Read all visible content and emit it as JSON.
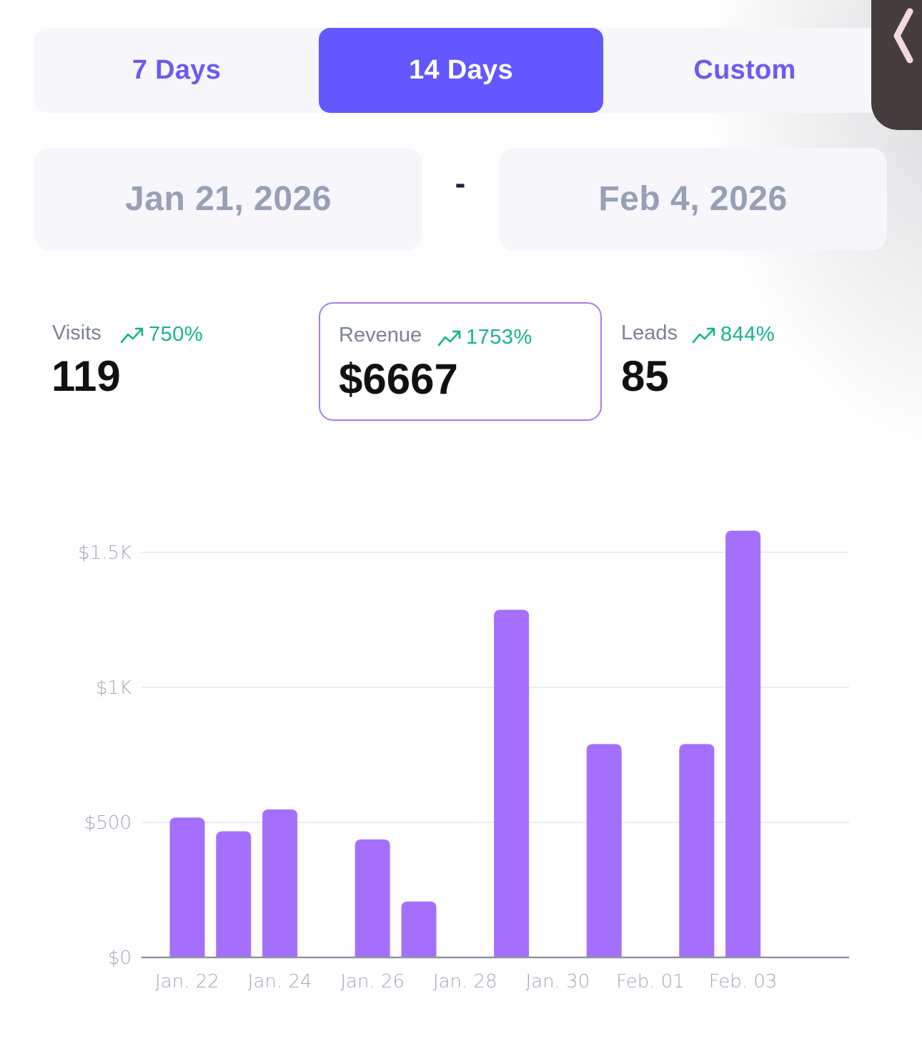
{
  "range_selector": {
    "options": [
      {
        "label": "7 Days",
        "active": false
      },
      {
        "label": "14 Days",
        "active": true
      },
      {
        "label": "Custom",
        "active": false
      }
    ]
  },
  "side_handle": {
    "icon": "chevron-left-icon"
  },
  "date_range": {
    "start": "Jan 21, 2026",
    "separator": "-",
    "end": "Feb 4, 2026"
  },
  "metrics": [
    {
      "label": "Visits",
      "trend": "750%",
      "value": "119",
      "selected": false
    },
    {
      "label": "Revenue",
      "trend": "1753%",
      "value": "$6667",
      "selected": true
    },
    {
      "label": "Leads",
      "trend": "844%",
      "value": "85",
      "selected": false
    }
  ],
  "colors": {
    "accent": "#6357ff",
    "bar": "#a56ffe",
    "trend_up": "#14b58d",
    "selected_border": "#a77cf0"
  },
  "chart_data": {
    "type": "bar",
    "title": "",
    "xlabel": "",
    "ylabel": "",
    "categories": [
      "Jan. 22",
      "Jan. 23",
      "Jan. 24",
      "Jan. 25",
      "Jan. 26",
      "Jan. 27",
      "Jan. 28",
      "Jan. 29",
      "Jan. 30",
      "Jan. 31",
      "Feb. 01",
      "Feb. 02",
      "Feb. 03",
      "Feb. 04"
    ],
    "values": [
      518,
      467,
      548,
      0,
      437,
      207,
      0,
      1287,
      0,
      790,
      0,
      790,
      1580,
      0
    ],
    "x_tick_labels": [
      "Jan. 22",
      "Jan. 24",
      "Jan. 26",
      "Jan. 28",
      "Jan. 30",
      "Feb. 01",
      "Feb. 03"
    ],
    "y_ticks": [
      {
        "value": 0,
        "label": "$0"
      },
      {
        "value": 500,
        "label": "$500"
      },
      {
        "value": 1000,
        "label": "$1K"
      },
      {
        "value": 1500,
        "label": "$1.5K"
      }
    ],
    "ylim": [
      0,
      1580
    ],
    "grid": true
  }
}
